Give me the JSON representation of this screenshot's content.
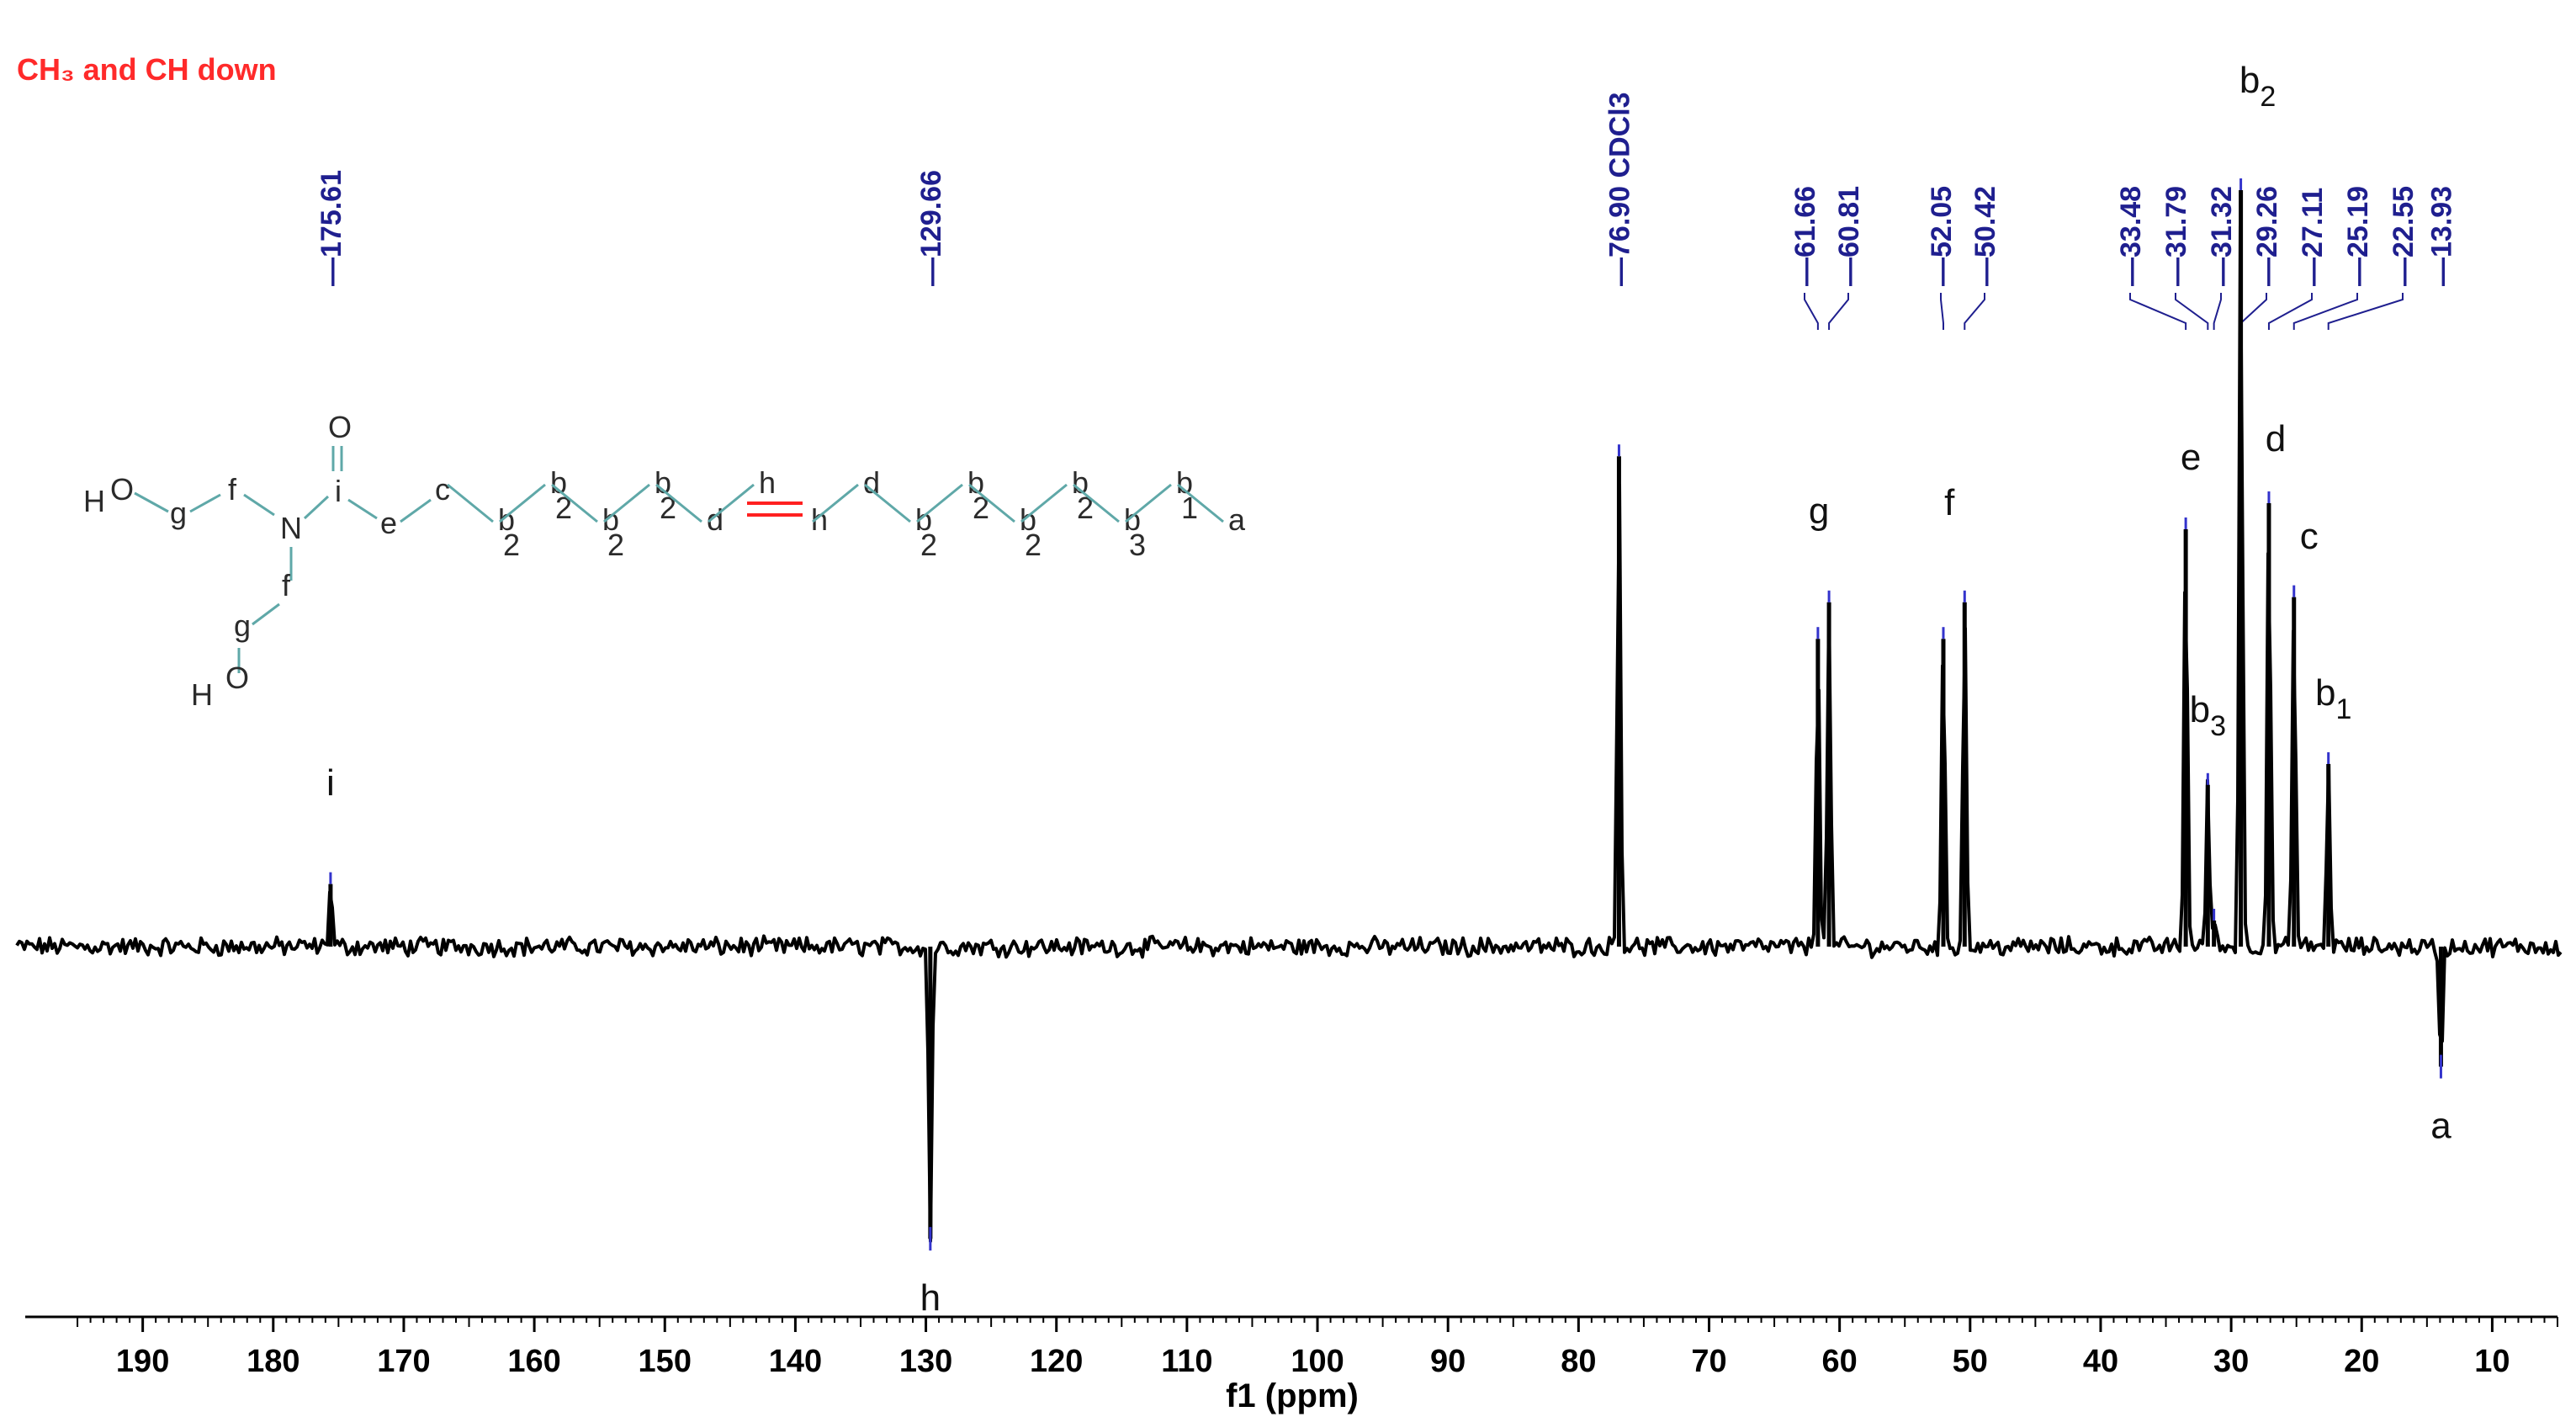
{
  "chart_data": {
    "type": "line",
    "title": "CH₃ and CH down",
    "xlabel": "f1 (ppm)",
    "xlim": [
      199,
      5
    ],
    "x_reversed": true,
    "x_ticks": [
      "190",
      "180",
      "170",
      "160",
      "150",
      "140",
      "130",
      "120",
      "110",
      "100",
      "90",
      "80",
      "70",
      "60",
      "50",
      "40",
      "30",
      "20",
      "10"
    ],
    "grid": false,
    "peaks": [
      {
        "ppm": 175.61,
        "label": "175.61",
        "intensity": 0.12,
        "assignment": "i"
      },
      {
        "ppm": 129.66,
        "label": "129.66",
        "intensity": -0.56,
        "assignment": "h"
      },
      {
        "ppm": 76.9,
        "label": "76.90 CDCl3",
        "intensity": 0.94,
        "assignment": ""
      },
      {
        "ppm": 61.66,
        "label": "61.66",
        "intensity": 0.59,
        "assignment": ""
      },
      {
        "ppm": 60.81,
        "label": "60.81",
        "intensity": 0.66,
        "assignment": "g"
      },
      {
        "ppm": 52.05,
        "label": "52.05",
        "intensity": 0.59,
        "assignment": ""
      },
      {
        "ppm": 50.42,
        "label": "50.42",
        "intensity": 0.66,
        "assignment": "f"
      },
      {
        "ppm": 33.48,
        "label": "33.48",
        "intensity": 0.8,
        "assignment": "e"
      },
      {
        "ppm": 31.79,
        "label": "31.79",
        "intensity": 0.31,
        "assignment": "b3"
      },
      {
        "ppm": 31.32,
        "label": "31.32",
        "intensity": 0.05,
        "assignment": ""
      },
      {
        "ppm": 29.26,
        "label": "29.26",
        "intensity": 1.45,
        "assignment": "b2"
      },
      {
        "ppm": 27.11,
        "label": "27.11",
        "intensity": 0.85,
        "assignment": "d"
      },
      {
        "ppm": 25.19,
        "label": "25.19",
        "intensity": 0.67,
        "assignment": "c"
      },
      {
        "ppm": 22.55,
        "label": "22.55",
        "intensity": 0.35,
        "assignment": "b1"
      },
      {
        "ppm": 13.93,
        "label": "13.93",
        "intensity": -0.23,
        "assignment": "a"
      }
    ],
    "colors": {
      "trace": "#000000",
      "peak_label": "#1f1f8f",
      "title": "#ff2a2a"
    }
  },
  "molecule": {
    "atoms": {
      "H": "H",
      "O": "O",
      "N": "N",
      "a": "a",
      "b": "b",
      "c": "c",
      "d": "d",
      "e": "e",
      "f": "f",
      "g": "g",
      "h": "h",
      "i": "i",
      "sub1": "1",
      "sub2": "2",
      "sub3": "3"
    },
    "colors": {
      "oxygen": "#ff2020",
      "nitrogen": "#1a3cff",
      "hydrogen": "#3a9a9a",
      "bond": "#5fa8a8",
      "double_bond": "#ff2020"
    }
  }
}
